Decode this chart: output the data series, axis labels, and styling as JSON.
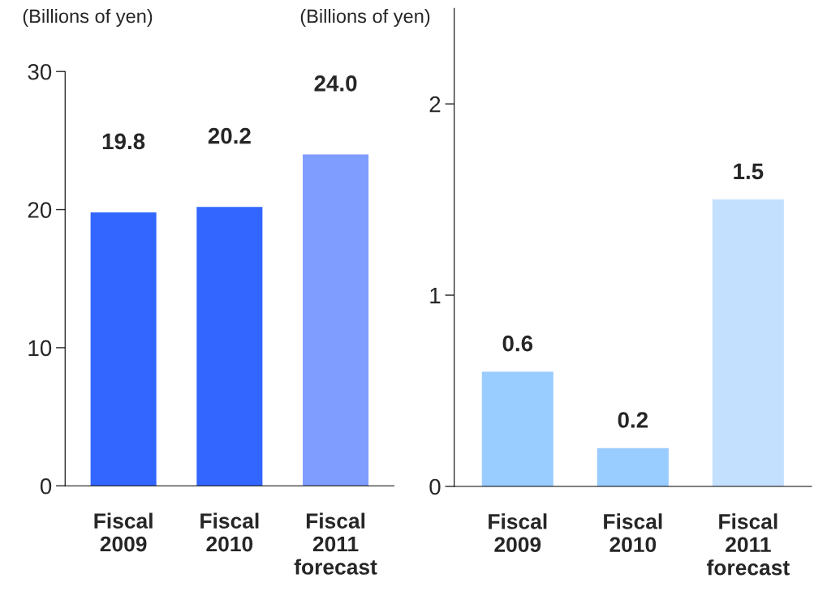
{
  "chart_data": [
    {
      "type": "bar",
      "ylabel": "(Billions of yen)",
      "categories": [
        "Fiscal\n2009",
        "Fiscal\n2010",
        "Fiscal\n2011\nforecast"
      ],
      "values": [
        19.8,
        20.2,
        24.0
      ],
      "value_labels": [
        "19.8",
        "20.2",
        "24.0"
      ],
      "colors": [
        "#3366ff",
        "#3366ff",
        "#7f9cff"
      ],
      "ylim": [
        0,
        30
      ],
      "yticks": [
        0,
        10,
        20,
        30
      ],
      "grid": false,
      "legend": false
    },
    {
      "type": "bar",
      "ylabel": "(Billions of yen)",
      "categories": [
        "Fiscal\n2009",
        "Fiscal\n2010",
        "Fiscal\n2011\nforecast"
      ],
      "values": [
        0.6,
        0.2,
        1.5
      ],
      "value_labels": [
        "0.6",
        "0.2",
        "1.5"
      ],
      "colors": [
        "#99ccff",
        "#99ccff",
        "#c4e0ff"
      ],
      "ylim": [
        0,
        2.5
      ],
      "yticks": [
        0,
        1,
        2
      ],
      "grid": false,
      "legend": false
    }
  ]
}
